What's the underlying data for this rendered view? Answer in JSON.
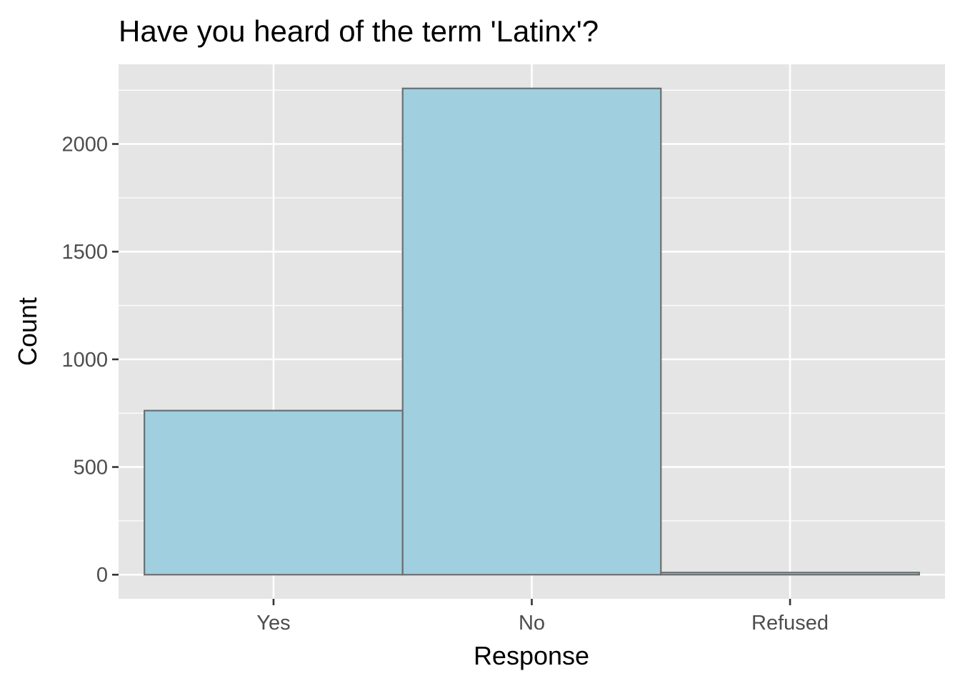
{
  "chart_data": {
    "type": "bar",
    "title": "Have you heard of the term 'Latinx'?",
    "xlabel": "Response",
    "ylabel": "Count",
    "categories": [
      "Yes",
      "No",
      "Refused"
    ],
    "values": [
      762,
      2258,
      10
    ],
    "ylim": [
      -112,
      2370
    ],
    "yticks": [
      0,
      500,
      1000,
      1500,
      2000
    ],
    "ytick_labels": [
      "0",
      "500",
      "1000",
      "1500",
      "2000"
    ],
    "grid": true,
    "legend": "none",
    "colors": {
      "bar_fill": "#a0cfe0",
      "bar_stroke": "#6e6e6e",
      "panel_background": "#e5e5e5",
      "grid": "#ffffff",
      "tick_text": "#4d4d4d",
      "tick_mark": "#333333"
    }
  }
}
